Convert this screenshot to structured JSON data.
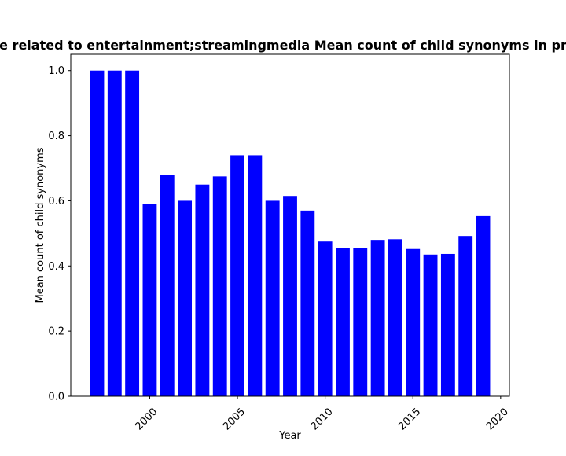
{
  "chart_data": {
    "type": "bar",
    "title": "e related to entertainment;streamingmedia Mean count of child synonyms in pr",
    "xlabel": "Year",
    "ylabel": "Mean count of child synonyms",
    "x": [
      1997,
      1998,
      1999,
      2000,
      2001,
      2002,
      2003,
      2004,
      2005,
      2006,
      2007,
      2008,
      2009,
      2010,
      2011,
      2012,
      2013,
      2014,
      2015,
      2016,
      2017,
      2018,
      2019
    ],
    "values": [
      1.0,
      1.0,
      1.0,
      0.59,
      0.68,
      0.6,
      0.65,
      0.675,
      0.74,
      0.74,
      0.6,
      0.615,
      0.57,
      0.475,
      0.455,
      0.455,
      0.48,
      0.482,
      0.452,
      0.435,
      0.437,
      0.492,
      0.553
    ],
    "xlim": [
      1995.5,
      2020.5
    ],
    "ylim": [
      0,
      1.05
    ],
    "x_ticks": [
      2000,
      2005,
      2010,
      2015,
      2020
    ],
    "x_tick_labels": [
      "2000",
      "2005",
      "2010",
      "2015",
      "2020"
    ],
    "y_ticks": [
      0.0,
      0.2,
      0.4,
      0.6,
      0.8,
      1.0
    ],
    "y_tick_labels": [
      "0.0",
      "0.2",
      "0.4",
      "0.6",
      "0.8",
      "1.0"
    ],
    "bar_color": "#0000ff",
    "grid": false,
    "legend": "none"
  }
}
